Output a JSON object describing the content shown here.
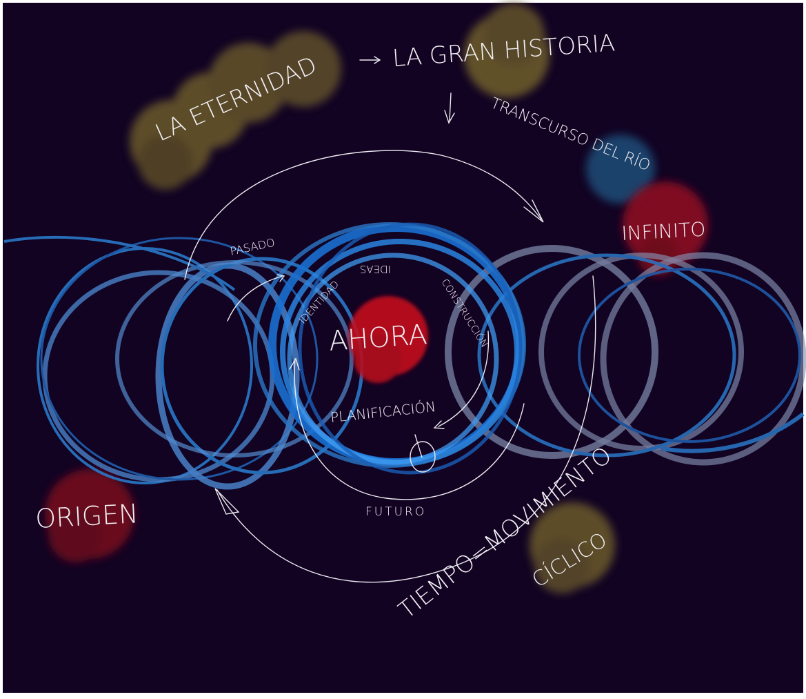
{
  "colors": {
    "background": "#120323",
    "canvas_border": "#ffffff",
    "blob_olive": "#6b5a2c",
    "blob_blue": "#1c4a73",
    "blob_red": "#8c0f22",
    "ring_blue": "#2a78c8",
    "ring_lightblue": "#4d8ed8",
    "ring_grey": "#8593b4",
    "stroke_white": "#ecebf0",
    "text_white": "#f2f0f4"
  },
  "labels": {
    "la_eternidad": "LA ETERNIDAD",
    "la_gran_historia": "LA GRAN HISTORIA",
    "transcurso": "TRANSCURSO DEL RÍO",
    "infinito": "INFINITO",
    "pasado": "PASADO",
    "identidad": "IDENTIDAD",
    "ideas": "IDEAS",
    "construccion": "CONSTRUCCIÓN",
    "ahora": "AHORA",
    "planificacion": "PLANIFICACIÓN",
    "futuro": "FUTURO",
    "origen": "ORIGEN",
    "tiempo_movimiento": "TIEMPO=MOVIMIENTO",
    "ciclico": "CÍCLICO"
  },
  "icons": {
    "arrow_right": "hand-drawn-arrow-right-icon",
    "arrow_down": "hand-drawn-arrow-down-icon",
    "clock": "clock-circle-icon"
  }
}
